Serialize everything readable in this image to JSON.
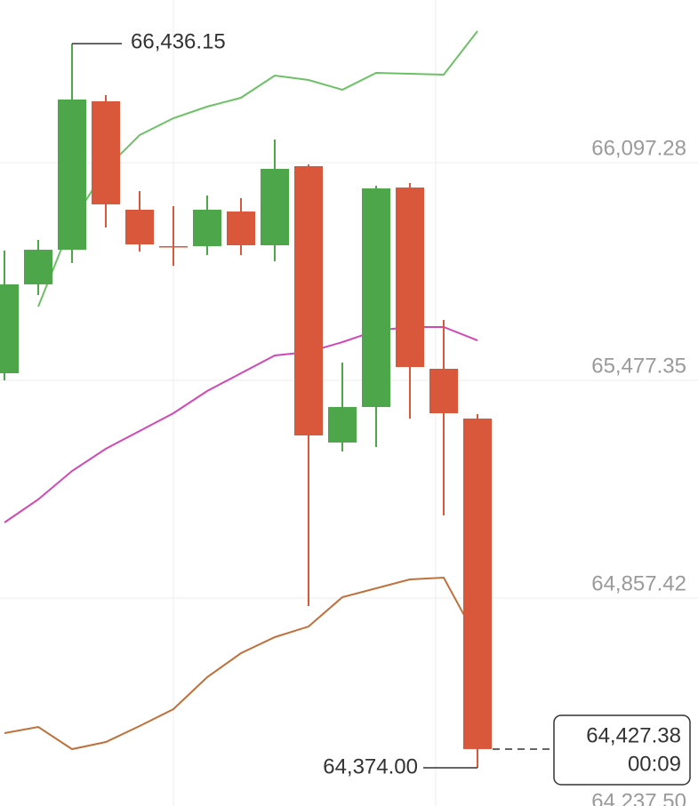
{
  "chart_data": {
    "type": "candlestick",
    "categories": [
      null,
      null,
      null,
      null,
      null,
      null,
      null,
      null,
      null,
      null,
      null,
      null,
      null,
      null,
      null
    ],
    "open": [
      65497.6,
      65750.6,
      65849.3,
      66271.9,
      65963.2,
      65859.4,
      65859.4,
      65958.1,
      65862.0,
      66087.2,
      65300.3,
      65401.4,
      66026.4,
      65510.3,
      65368.5
    ],
    "high": [
      65846.8,
      65877.2,
      66436.15,
      66289.6,
      66016.3,
      65973.3,
      66003.7,
      65996.1,
      66163.1,
      66092.2,
      65528.0,
      66031.5,
      66039.1,
      65649.4,
      65381.2
    ],
    "low": [
      65477.3,
      65720.3,
      65811.4,
      65912.6,
      65844.2,
      65803.8,
      65834.1,
      65834.1,
      65816.4,
      64834.6,
      65274.9,
      65287.6,
      65368.5,
      65092.7,
      64374.0
    ],
    "close": [
      65750.6,
      65849.3,
      66277.0,
      65978.4,
      65864.5,
      65856.9,
      65963.2,
      65862.0,
      66079.6,
      65320.5,
      65401.4,
      66023.9,
      65515.3,
      65383.7,
      64427.38
    ],
    "up_color": "#4ea64a",
    "down_color": "#d9573b",
    "series": [
      {
        "color": "#6cc065",
        "values": [
          null,
          65687.4,
          65927.7,
          66079.6,
          66175.7,
          66223.8,
          66256.7,
          66282.0,
          66345.3,
          66332.6,
          66304.8,
          66352.9,
          66350.3,
          66347.8,
          66471.8
        ]
      },
      {
        "color": "#d048b8",
        "values": [
          65072.5,
          65138.3,
          65219.2,
          65282.5,
          65333.1,
          65383.7,
          65447.0,
          65497.6,
          65548.2,
          65558.3,
          65586.2,
          65619.1,
          65629.2,
          65629.2,
          65591.2
        ]
      },
      {
        "color": "#c0703a",
        "values": [
          64472.8,
          64490.5,
          64427.2,
          64447.5,
          64493.0,
          64541.1,
          64632.2,
          64700.5,
          64746.1,
          64776.4,
          64859.9,
          64885.2,
          64910.5,
          64915.6,
          64738.5
        ]
      }
    ],
    "ylim": [
      64265.3,
      66560.4
    ],
    "yticks": [
      {
        "value": 66097.28,
        "label": "66,097.28"
      },
      {
        "value": 65477.35,
        "label": "65,477.35"
      },
      {
        "value": 64857.42,
        "label": "64,857.42"
      },
      {
        "value": 64237.5,
        "label": "64,237.50"
      }
    ],
    "grid": true,
    "high_marker": {
      "value": 66436.15,
      "label": "66,436.15"
    },
    "low_marker": {
      "value": 64374.0,
      "label": "64,374.00"
    },
    "last_price": {
      "value": 64427.38,
      "label": "64,427.38",
      "time": "00:09"
    }
  }
}
